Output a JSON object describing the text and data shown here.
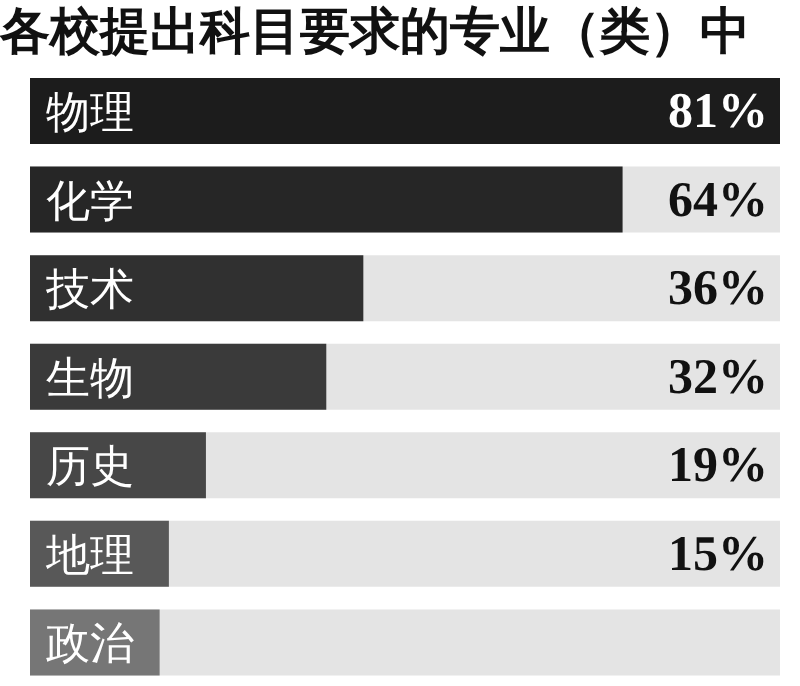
{
  "chart_data": {
    "type": "bar",
    "orientation": "horizontal",
    "title": "各校提出科目要求的专业（类）中",
    "categories": [
      "物理",
      "化学",
      "技术",
      "生物",
      "历史",
      "地理",
      "政治"
    ],
    "values": [
      81,
      64,
      36,
      32,
      19,
      15,
      14
    ],
    "value_labels": [
      "81%",
      "64%",
      "36%",
      "32%",
      "19%",
      "15%",
      null
    ],
    "colors": [
      "#1c1c1c",
      "#262626",
      "#303030",
      "#3a3a3a",
      "#474747",
      "#585858",
      "#767676"
    ],
    "xlim": [
      0,
      81
    ]
  }
}
